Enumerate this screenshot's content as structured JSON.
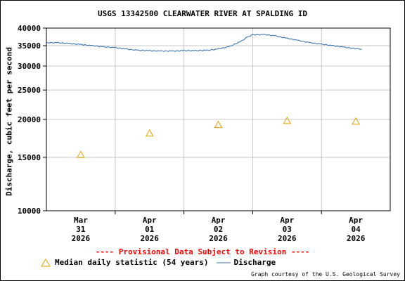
{
  "chart_data": {
    "type": "line",
    "title": "USGS 13342500 CLEARWATER RIVER AT SPALDING ID",
    "ylabel": "Discharge, cubic feet per second",
    "xlabel": "",
    "y_scale": "log",
    "ylim": [
      10000,
      40000
    ],
    "y_ticks": [
      10000,
      15000,
      20000,
      25000,
      30000,
      35000,
      40000
    ],
    "y_tick_labels": [
      "10000",
      "15000",
      "20000",
      "25000",
      "30000",
      "35000",
      "40000"
    ],
    "xlim": [
      "2026-03-30T12:00",
      "2026-04-04T12:00"
    ],
    "x_ticks": [
      {
        "date": "2026-03-31",
        "label": [
          "Mar",
          "31",
          "2026"
        ]
      },
      {
        "date": "2026-04-01",
        "label": [
          "Apr",
          "01",
          "2026"
        ]
      },
      {
        "date": "2026-04-02",
        "label": [
          "Apr",
          "02",
          "2026"
        ]
      },
      {
        "date": "2026-04-03",
        "label": [
          "Apr",
          "03",
          "2026"
        ]
      },
      {
        "date": "2026-04-04",
        "label": [
          "Apr",
          "04",
          "2026"
        ]
      }
    ],
    "grid": true,
    "series": [
      {
        "name": "Discharge",
        "color": "#2b6cb0",
        "kind": "line",
        "points": [
          {
            "x": "2026-03-30T12:00",
            "y": 35800
          },
          {
            "x": "2026-03-30T16:00",
            "y": 35800
          },
          {
            "x": "2026-03-30T20:00",
            "y": 35600
          },
          {
            "x": "2026-03-31T00:00",
            "y": 35300
          },
          {
            "x": "2026-03-31T04:00",
            "y": 35000
          },
          {
            "x": "2026-03-31T08:00",
            "y": 34700
          },
          {
            "x": "2026-03-31T12:00",
            "y": 34500
          },
          {
            "x": "2026-03-31T16:00",
            "y": 34100
          },
          {
            "x": "2026-03-31T20:00",
            "y": 33800
          },
          {
            "x": "2026-04-01T00:00",
            "y": 33700
          },
          {
            "x": "2026-04-01T04:00",
            "y": 33600
          },
          {
            "x": "2026-04-01T08:00",
            "y": 33600
          },
          {
            "x": "2026-04-01T12:00",
            "y": 33700
          },
          {
            "x": "2026-04-01T16:00",
            "y": 33700
          },
          {
            "x": "2026-04-01T20:00",
            "y": 33800
          },
          {
            "x": "2026-04-02T00:00",
            "y": 34100
          },
          {
            "x": "2026-04-02T04:00",
            "y": 34800
          },
          {
            "x": "2026-04-02T08:00",
            "y": 36200
          },
          {
            "x": "2026-04-02T10:00",
            "y": 37300
          },
          {
            "x": "2026-04-02T12:00",
            "y": 38000
          },
          {
            "x": "2026-04-02T16:00",
            "y": 38100
          },
          {
            "x": "2026-04-02T20:00",
            "y": 37700
          },
          {
            "x": "2026-04-03T00:00",
            "y": 37000
          },
          {
            "x": "2026-04-03T04:00",
            "y": 36400
          },
          {
            "x": "2026-04-03T08:00",
            "y": 35800
          },
          {
            "x": "2026-04-03T12:00",
            "y": 35400
          },
          {
            "x": "2026-04-03T16:00",
            "y": 35000
          },
          {
            "x": "2026-04-03T20:00",
            "y": 34600
          },
          {
            "x": "2026-04-03T23:00",
            "y": 34300
          },
          {
            "x": "2026-04-04T02:00",
            "y": 34100
          }
        ]
      },
      {
        "name": "Median daily statistic (54 years)",
        "color": "#e6a000",
        "kind": "marker",
        "marker": "triangle",
        "points": [
          {
            "x": "2026-03-31T00:00",
            "y": 15300
          },
          {
            "x": "2026-04-01T00:00",
            "y": 18000
          },
          {
            "x": "2026-04-02T00:00",
            "y": 19200
          },
          {
            "x": "2026-04-03T00:00",
            "y": 19800
          },
          {
            "x": "2026-04-04T00:00",
            "y": 19700
          }
        ]
      }
    ]
  },
  "provisional_text": "---- Provisional Data Subject to Revision ----",
  "provisional_color": "#ff0000",
  "legend": {
    "median_label": "Median daily statistic (54 years)",
    "discharge_label": "Discharge"
  },
  "credit": "Graph courtesy of the U.S. Geological Survey"
}
